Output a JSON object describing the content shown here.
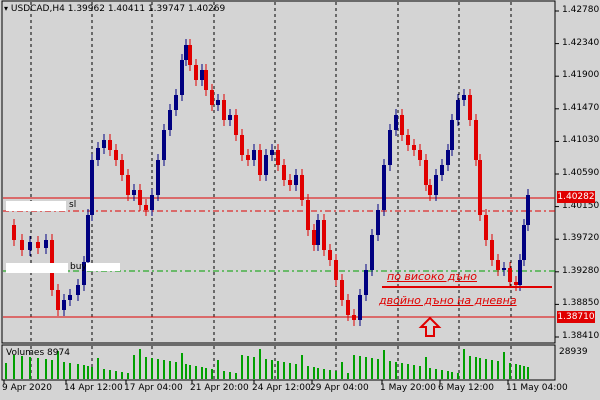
{
  "header": {
    "symbol": "USDCAD,H4",
    "open": "1.39962",
    "high": "1.40411",
    "low": "1.39747",
    "close": "1.40269"
  },
  "price_axis": {
    "labels": [
      "1.42780",
      "1.42340",
      "1.41900",
      "1.41470",
      "1.41030",
      "1.40590",
      "1.40150",
      "1.39720",
      "1.39280",
      "1.38850",
      "1.38410"
    ],
    "current_price": "1.40282",
    "level_price": "1.38710"
  },
  "time_axis": {
    "labels": [
      "9 Apr 2020",
      "14 Apr 12:00",
      "17 Apr 04:00",
      "21 Apr 20:00",
      "24 Apr 12:00",
      "29 Apr 04:00",
      "1 May 20:00",
      "6 May 12:00",
      "11 May 04:00"
    ]
  },
  "volumes": {
    "label": "Volumes 8974",
    "max_label": "28939"
  },
  "orders": {
    "sl_label": "sl",
    "buy_label": "buy"
  },
  "annotations": {
    "line1": "по високо дъно",
    "line2": "двойно дъно на дневна"
  },
  "colors": {
    "background": "#d4d4d4",
    "bull_candle": "#000080",
    "bear_candle": "#e00000",
    "volume_bar": "#00a000",
    "line_red": "#e00000",
    "line_green": "#00a000"
  }
}
